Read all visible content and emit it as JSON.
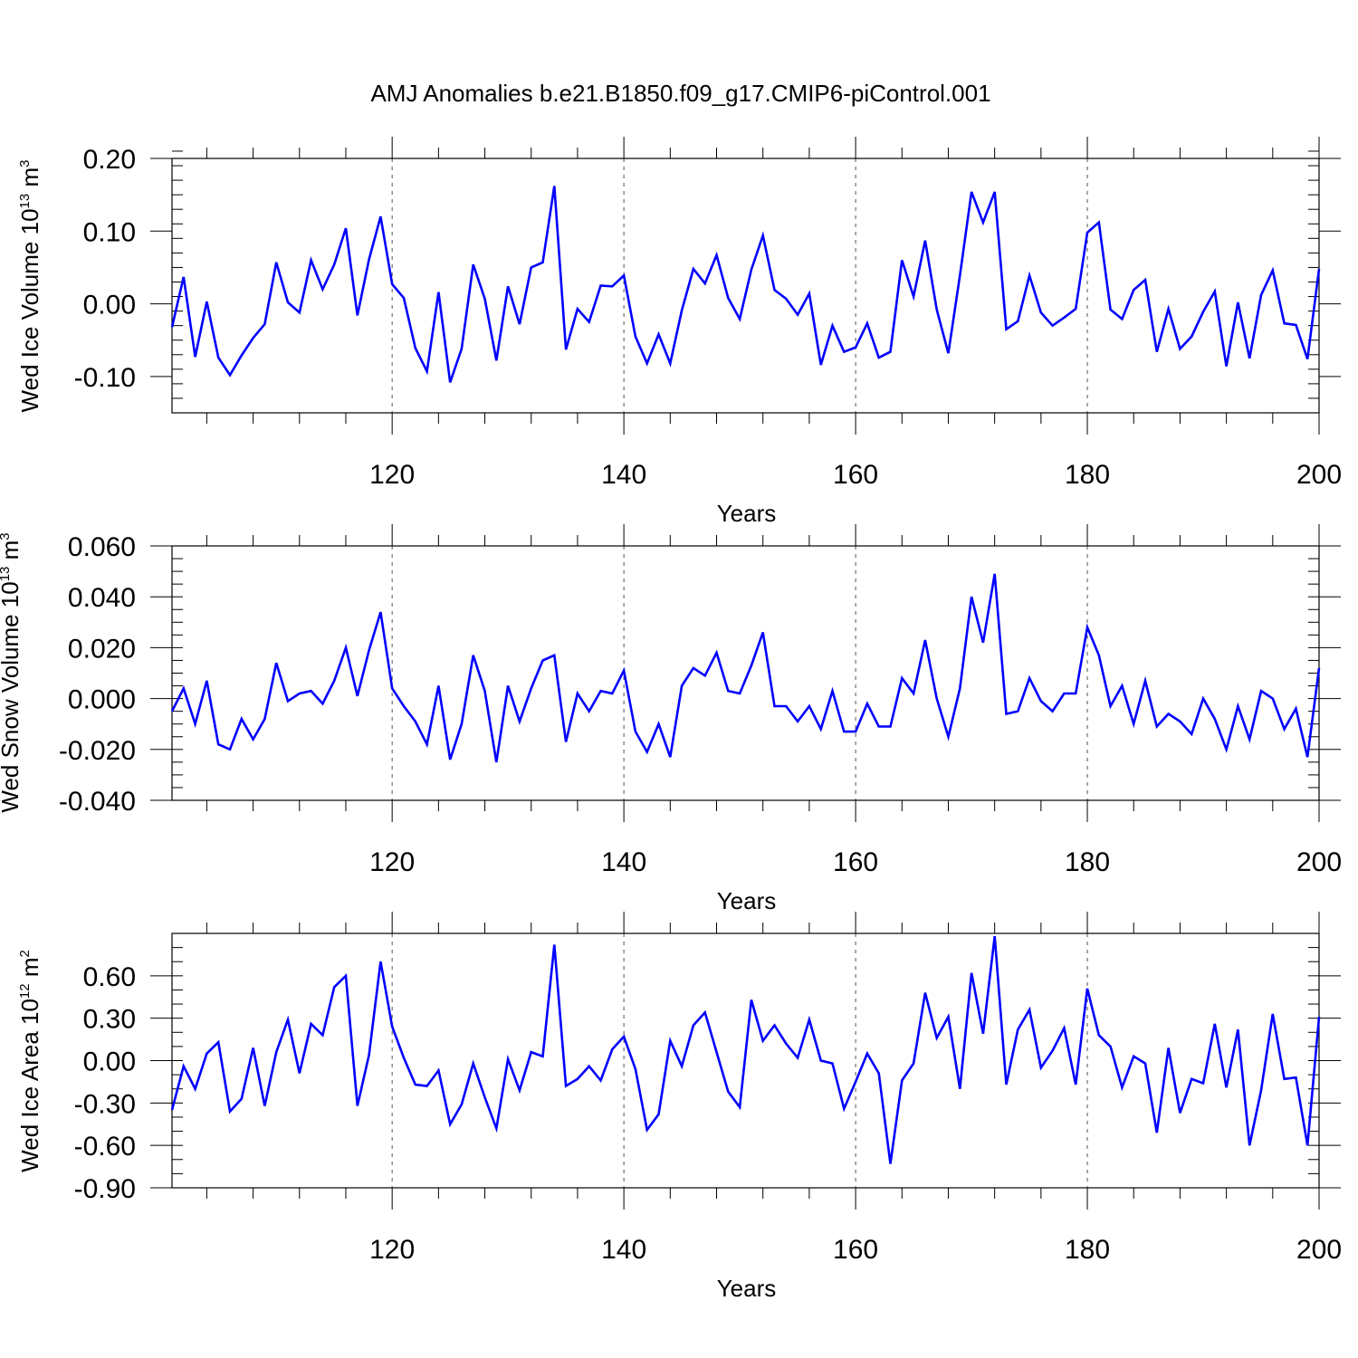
{
  "figure_title": "AMJ Anomalies b.e21.B1850.f09_g17.CMIP6-piControl.001",
  "colors": {
    "series": "#0000ff",
    "axes": "#000000",
    "grid": "#555555"
  },
  "chart_data": [
    {
      "type": "line",
      "title": "AMJ Anomalies b.e21.B1850.f09_g17.CMIP6-piControl.001",
      "ylabel": {
        "text": "Wed Ice Volume 10",
        "sup": "13",
        "text2": " m",
        "sup2": "3"
      },
      "xlabel": "Years",
      "xlim": [
        101,
        200
      ],
      "ylim": [
        -0.15,
        0.2
      ],
      "x_major_ticks": [
        120,
        140,
        160,
        180,
        200
      ],
      "x_tick_labels": [
        "120",
        "140",
        "160",
        "180",
        "200"
      ],
      "y_major_ticks": [
        -0.1,
        0.0,
        0.1,
        0.2
      ],
      "y_tick_labels": [
        "-0.10",
        "0.00",
        "0.10",
        "0.20"
      ],
      "y_minor_step": 0.02,
      "vertical_grid": [
        120,
        140,
        160,
        180
      ],
      "x_start": 101,
      "series": [
        {
          "name": "Wed Ice Volume",
          "color": "#0000ff",
          "values": [
            -0.032,
            0.037,
            -0.073,
            0.003,
            -0.074,
            -0.098,
            -0.071,
            -0.047,
            -0.028,
            0.057,
            0.002,
            -0.012,
            0.06,
            0.02,
            0.054,
            0.104,
            -0.016,
            0.061,
            0.12,
            0.027,
            0.008,
            -0.061,
            -0.093,
            0.016,
            -0.108,
            -0.062,
            0.054,
            0.007,
            -0.078,
            0.024,
            -0.028,
            0.05,
            0.057,
            0.162,
            -0.063,
            -0.007,
            -0.025,
            0.025,
            0.024,
            0.039,
            -0.045,
            -0.082,
            -0.042,
            -0.082,
            -0.009,
            0.048,
            0.028,
            0.067,
            0.008,
            -0.021,
            0.047,
            0.094,
            0.019,
            0.007,
            -0.015,
            0.014,
            -0.084,
            -0.03,
            -0.066,
            -0.06,
            -0.027,
            -0.074,
            -0.066,
            0.06,
            0.01,
            0.087,
            -0.008,
            -0.068,
            0.039,
            0.154,
            0.112,
            0.154,
            -0.035,
            -0.024,
            0.039,
            -0.012,
            -0.03,
            -0.019,
            -0.007,
            0.098,
            0.112,
            -0.008,
            -0.021,
            0.019,
            0.033,
            -0.066,
            -0.007,
            -0.062,
            -0.045,
            -0.011,
            0.017,
            -0.086,
            0.002,
            -0.075,
            0.012,
            0.046,
            -0.027,
            -0.029,
            -0.076,
            0.048
          ]
        }
      ]
    },
    {
      "type": "line",
      "ylabel": {
        "text": "Wed Snow Volume 10",
        "sup": "13",
        "text2": " m",
        "sup2": "3"
      },
      "xlabel": "Years",
      "xlim": [
        101,
        200
      ],
      "ylim": [
        -0.04,
        0.06
      ],
      "x_major_ticks": [
        120,
        140,
        160,
        180,
        200
      ],
      "x_tick_labels": [
        "120",
        "140",
        "160",
        "180",
        "200"
      ],
      "y_major_ticks": [
        -0.04,
        -0.02,
        0.0,
        0.02,
        0.04,
        0.06
      ],
      "y_tick_labels": [
        "-0.040",
        "-0.020",
        "0.000",
        "0.020",
        "0.040",
        "0.060"
      ],
      "y_minor_step": 0.005,
      "vertical_grid": [
        120,
        140,
        160,
        180
      ],
      "x_start": 101,
      "series": [
        {
          "name": "Wed Snow Volume",
          "color": "#0000ff",
          "values": [
            -0.005,
            0.004,
            -0.01,
            0.007,
            -0.018,
            -0.02,
            -0.008,
            -0.016,
            -0.008,
            0.014,
            -0.001,
            0.002,
            0.003,
            -0.002,
            0.007,
            0.02,
            0.001,
            0.019,
            0.034,
            0.004,
            -0.003,
            -0.009,
            -0.018,
            0.005,
            -0.024,
            -0.01,
            0.017,
            0.003,
            -0.025,
            0.005,
            -0.009,
            0.004,
            0.015,
            0.017,
            -0.017,
            0.002,
            -0.005,
            0.003,
            0.002,
            0.011,
            -0.013,
            -0.021,
            -0.01,
            -0.023,
            0.005,
            0.012,
            0.009,
            0.018,
            0.003,
            0.002,
            0.013,
            0.026,
            -0.003,
            -0.003,
            -0.009,
            -0.003,
            -0.012,
            0.003,
            -0.013,
            -0.013,
            -0.002,
            -0.011,
            -0.011,
            0.008,
            0.002,
            0.023,
            0.0,
            -0.015,
            0.004,
            0.04,
            0.022,
            0.049,
            -0.006,
            -0.005,
            0.008,
            -0.001,
            -0.005,
            0.002,
            0.002,
            0.028,
            0.017,
            -0.003,
            0.005,
            -0.01,
            0.007,
            -0.011,
            -0.006,
            -0.009,
            -0.014,
            0.0,
            -0.008,
            -0.02,
            -0.003,
            -0.016,
            0.003,
            0.0,
            -0.012,
            -0.004,
            -0.023,
            0.012
          ]
        }
      ]
    },
    {
      "type": "line",
      "ylabel": {
        "text": "Wed Ice Area 10",
        "sup": "12",
        "text2": " m",
        "sup2": "2"
      },
      "xlabel": "Years",
      "xlim": [
        101,
        200
      ],
      "ylim": [
        -0.9,
        0.9
      ],
      "x_major_ticks": [
        120,
        140,
        160,
        180,
        200
      ],
      "x_tick_labels": [
        "120",
        "140",
        "160",
        "180",
        "200"
      ],
      "y_major_ticks": [
        -0.9,
        -0.6,
        -0.3,
        0.0,
        0.3,
        0.6
      ],
      "y_tick_labels": [
        "-0.90",
        "-0.60",
        "-0.30",
        "0.00",
        "0.30",
        "0.60"
      ],
      "y_minor_step": 0.1,
      "vertical_grid": [
        120,
        140,
        160,
        180
      ],
      "x_start": 101,
      "series": [
        {
          "name": "Wed Ice Area",
          "color": "#0000ff",
          "values": [
            -0.35,
            -0.04,
            -0.2,
            0.05,
            0.13,
            -0.36,
            -0.27,
            0.09,
            -0.32,
            0.06,
            0.29,
            -0.09,
            0.26,
            0.18,
            0.52,
            0.6,
            -0.32,
            0.04,
            0.7,
            0.24,
            0.02,
            -0.17,
            -0.18,
            -0.07,
            -0.45,
            -0.31,
            -0.02,
            -0.26,
            -0.48,
            0.01,
            -0.21,
            0.06,
            0.03,
            0.82,
            -0.18,
            -0.13,
            -0.04,
            -0.14,
            0.08,
            0.17,
            -0.06,
            -0.49,
            -0.38,
            0.14,
            -0.04,
            0.25,
            0.34,
            0.06,
            -0.22,
            -0.33,
            0.43,
            0.14,
            0.25,
            0.12,
            0.02,
            0.29,
            0.0,
            -0.02,
            -0.34,
            -0.15,
            0.05,
            -0.09,
            -0.73,
            -0.14,
            -0.02,
            0.48,
            0.16,
            0.31,
            -0.2,
            0.62,
            0.19,
            0.88,
            -0.17,
            0.22,
            0.36,
            -0.05,
            0.07,
            0.23,
            -0.17,
            0.51,
            0.18,
            0.1,
            -0.19,
            0.03,
            -0.02,
            -0.51,
            0.09,
            -0.37,
            -0.13,
            -0.16,
            0.26,
            -0.19,
            0.22,
            -0.6,
            -0.21,
            0.33,
            -0.13,
            -0.12,
            -0.6,
            0.31
          ]
        }
      ]
    }
  ]
}
